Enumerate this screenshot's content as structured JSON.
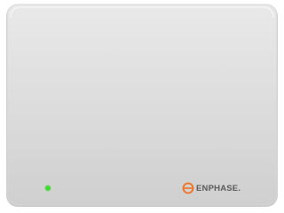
{
  "logo": {
    "text": "ENPHASE."
  }
}
